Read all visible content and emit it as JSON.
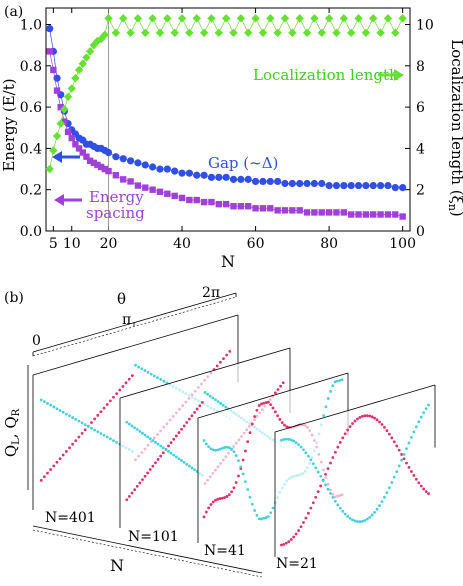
{
  "chart_data": [
    {
      "panel": "(a)",
      "type": "scatter",
      "x_label": "N",
      "y_label_left": "Energy (E/t)",
      "y_label_right": "Localization length (ξ_n)",
      "y_label_right_parts": {
        "main": "Localization length (ξ",
        "sub": "n",
        "tail": ")"
      },
      "x_ticks": [
        "5",
        "10",
        "20",
        "40",
        "60",
        "80",
        "100"
      ],
      "y_left_ticks": [
        "0.0",
        "0.2",
        "0.4",
        "0.6",
        "0.8",
        "1.0"
      ],
      "y_right_ticks": [
        "0",
        "2",
        "4",
        "6",
        "8",
        "10"
      ],
      "xlim": [
        3,
        102
      ],
      "ylim_left": [
        0,
        1.08
      ],
      "ylim_right": [
        0,
        10.8
      ],
      "grid": false,
      "annotations": {
        "gap": "Gap (~Δ)",
        "energy_spacing_1": "Energy",
        "energy_spacing_2": "spacing",
        "localization": "Localization length"
      },
      "series": [
        {
          "name": "Gap (~Δ)",
          "axis": "left",
          "color": "#2f4fe6",
          "marker": "circle",
          "x": [
            4,
            5,
            6,
            7,
            8,
            9,
            10,
            11,
            12,
            13,
            14,
            15,
            16,
            17,
            18,
            19,
            20,
            22,
            24,
            26,
            28,
            30,
            32,
            34,
            36,
            38,
            40,
            42,
            44,
            46,
            48,
            50,
            52,
            54,
            56,
            58,
            60,
            62,
            64,
            66,
            68,
            70,
            72,
            74,
            76,
            78,
            80,
            82,
            84,
            86,
            88,
            90,
            92,
            94,
            96,
            98,
            100
          ],
          "y": [
            0.98,
            0.87,
            0.74,
            0.66,
            0.58,
            0.52,
            0.49,
            0.47,
            0.45,
            0.44,
            0.42,
            0.42,
            0.41,
            0.4,
            0.4,
            0.39,
            0.38,
            0.36,
            0.35,
            0.34,
            0.33,
            0.32,
            0.31,
            0.3,
            0.3,
            0.29,
            0.28,
            0.28,
            0.27,
            0.27,
            0.26,
            0.26,
            0.26,
            0.25,
            0.25,
            0.25,
            0.24,
            0.24,
            0.24,
            0.24,
            0.23,
            0.23,
            0.23,
            0.23,
            0.23,
            0.23,
            0.22,
            0.22,
            0.22,
            0.22,
            0.22,
            0.22,
            0.22,
            0.22,
            0.22,
            0.21,
            0.21
          ]
        },
        {
          "name": "Energy spacing",
          "axis": "left",
          "color": "#a040d8",
          "marker": "square",
          "x": [
            4,
            5,
            6,
            7,
            8,
            9,
            10,
            11,
            12,
            13,
            14,
            15,
            16,
            17,
            18,
            19,
            20,
            22,
            24,
            26,
            28,
            30,
            32,
            34,
            36,
            38,
            40,
            42,
            44,
            46,
            48,
            50,
            52,
            54,
            56,
            58,
            60,
            62,
            64,
            66,
            68,
            70,
            72,
            74,
            76,
            78,
            80,
            82,
            84,
            86,
            88,
            90,
            92,
            94,
            96,
            98,
            100
          ],
          "y": [
            0.87,
            0.78,
            0.68,
            0.6,
            0.53,
            0.48,
            0.45,
            0.42,
            0.4,
            0.38,
            0.36,
            0.34,
            0.33,
            0.32,
            0.31,
            0.3,
            0.29,
            0.27,
            0.25,
            0.24,
            0.22,
            0.21,
            0.2,
            0.19,
            0.18,
            0.17,
            0.16,
            0.15,
            0.15,
            0.14,
            0.14,
            0.13,
            0.13,
            0.12,
            0.12,
            0.12,
            0.11,
            0.11,
            0.11,
            0.1,
            0.1,
            0.1,
            0.1,
            0.09,
            0.09,
            0.09,
            0.09,
            0.09,
            0.09,
            0.08,
            0.08,
            0.08,
            0.08,
            0.08,
            0.08,
            0.08,
            0.07
          ]
        },
        {
          "name": "Localization length",
          "axis": "right",
          "color": "#66e033",
          "marker": "diamond",
          "x": [
            4,
            5,
            6,
            7,
            8,
            9,
            10,
            11,
            12,
            13,
            14,
            15,
            16,
            17,
            18,
            19,
            20,
            22,
            24,
            26,
            28,
            30,
            32,
            34,
            36,
            38,
            40,
            42,
            44,
            46,
            48,
            50,
            52,
            54,
            56,
            58,
            60,
            62,
            64,
            66,
            68,
            70,
            72,
            74,
            76,
            78,
            80,
            82,
            84,
            86,
            88,
            90,
            92,
            94,
            96,
            98,
            100
          ],
          "y": [
            3.0,
            3.9,
            4.6,
            5.2,
            5.9,
            6.5,
            6.9,
            7.4,
            7.8,
            8.1,
            8.4,
            8.7,
            9.0,
            9.2,
            9.3,
            9.5,
            10.3,
            9.6,
            10.3,
            9.6,
            10.3,
            9.6,
            10.3,
            9.6,
            10.3,
            9.6,
            10.3,
            9.6,
            10.3,
            9.6,
            10.3,
            9.6,
            10.3,
            9.6,
            10.3,
            9.6,
            10.3,
            9.6,
            10.3,
            9.6,
            10.3,
            9.6,
            10.3,
            9.6,
            10.3,
            9.6,
            10.3,
            9.6,
            10.3,
            9.6,
            10.3,
            9.6,
            10.3,
            9.6,
            10.3,
            9.6,
            10.3
          ]
        }
      ]
    },
    {
      "panel": "(b)",
      "type": "scatter",
      "x_label": "N",
      "theta_label": "θ",
      "theta_ticks": [
        "0",
        "π",
        "2π"
      ],
      "y_label": "Q_L, Q_R",
      "y_label_parts": {
        "q1": "Q",
        "s1": "L",
        "sep": ", ",
        "q2": "Q",
        "s2": "R"
      },
      "frames": [
        "N=401",
        "N=101",
        "N=41",
        "N=21"
      ],
      "series_colors": {
        "left_edge_charge": "#e03070",
        "right_edge_charge": "#44d0dc"
      }
    }
  ],
  "colors": {
    "gap": "#2f4fe6",
    "spacing": "#a040d8",
    "localization": "#66e033",
    "q_left": "#e03070",
    "q_right": "#44d0dc"
  }
}
